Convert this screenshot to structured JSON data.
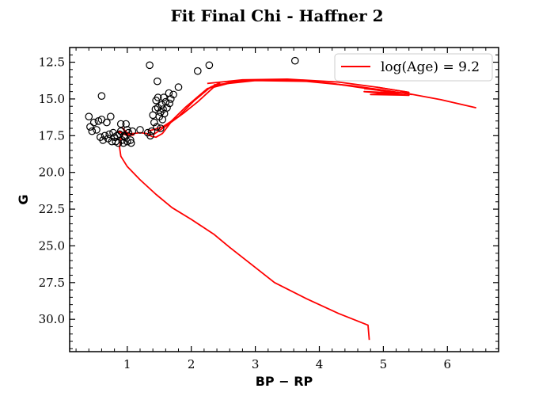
{
  "chart_data": {
    "type": "scatter",
    "title": "Fit Final Chi - Haffner 2",
    "xlabel": "BP − RP",
    "ylabel": "G",
    "xlim": [
      0.1,
      6.8
    ],
    "ylim": [
      32.2,
      11.5
    ],
    "y_inverted": true,
    "grid": false,
    "legend_position": "top-right",
    "x_ticks": [
      1,
      2,
      3,
      4,
      5,
      6
    ],
    "x_tick_labels": [
      "1",
      "2",
      "3",
      "4",
      "5",
      "6"
    ],
    "y_ticks": [
      12.5,
      15.0,
      17.5,
      20.0,
      22.5,
      25.0,
      27.5,
      30.0
    ],
    "y_tick_labels": [
      "12.5",
      "15.0",
      "17.5",
      "20.0",
      "22.5",
      "25.0",
      "27.5",
      "30.0"
    ],
    "series": [
      {
        "name": "stars",
        "kind": "scatter",
        "marker": "open-circle",
        "color": "#000000",
        "points": [
          [
            0.4,
            16.2
          ],
          [
            0.42,
            16.9
          ],
          [
            0.45,
            17.2
          ],
          [
            0.48,
            16.6
          ],
          [
            0.52,
            17.1
          ],
          [
            0.55,
            16.5
          ],
          [
            0.58,
            17.6
          ],
          [
            0.6,
            16.4
          ],
          [
            0.62,
            17.8
          ],
          [
            0.65,
            17.5
          ],
          [
            0.68,
            16.6
          ],
          [
            0.7,
            17.7
          ],
          [
            0.72,
            17.4
          ],
          [
            0.74,
            16.2
          ],
          [
            0.76,
            17.9
          ],
          [
            0.78,
            17.3
          ],
          [
            0.8,
            17.6
          ],
          [
            0.82,
            17.9
          ],
          [
            0.84,
            17.5
          ],
          [
            0.86,
            18.0
          ],
          [
            0.88,
            17.4
          ],
          [
            0.9,
            17.2
          ],
          [
            0.9,
            16.7
          ],
          [
            0.92,
            17.8
          ],
          [
            0.94,
            18.0
          ],
          [
            0.95,
            17.5
          ],
          [
            0.96,
            17.6
          ],
          [
            0.98,
            16.7
          ],
          [
            1.0,
            17.9
          ],
          [
            1.0,
            17.1
          ],
          [
            1.02,
            17.3
          ],
          [
            1.05,
            17.8
          ],
          [
            1.06,
            18.0
          ],
          [
            1.08,
            17.2
          ],
          [
            0.6,
            14.8
          ],
          [
            1.2,
            17.1
          ],
          [
            1.32,
            17.3
          ],
          [
            1.36,
            17.5
          ],
          [
            1.38,
            17.2
          ],
          [
            1.4,
            16.1
          ],
          [
            1.42,
            16.6
          ],
          [
            1.44,
            15.7
          ],
          [
            1.45,
            15.1
          ],
          [
            1.46,
            16.9
          ],
          [
            1.48,
            15.6
          ],
          [
            1.48,
            14.9
          ],
          [
            1.5,
            16.2
          ],
          [
            1.52,
            15.9
          ],
          [
            1.52,
            17.0
          ],
          [
            1.54,
            15.4
          ],
          [
            1.55,
            16.4
          ],
          [
            1.56,
            15.7
          ],
          [
            1.57,
            14.9
          ],
          [
            1.58,
            16.0
          ],
          [
            1.6,
            15.2
          ],
          [
            1.62,
            15.6
          ],
          [
            1.65,
            14.6
          ],
          [
            1.66,
            15.3
          ],
          [
            1.68,
            15.0
          ],
          [
            1.72,
            14.7
          ],
          [
            1.8,
            14.2
          ],
          [
            1.47,
            13.8
          ],
          [
            1.35,
            12.7
          ],
          [
            2.1,
            13.1
          ],
          [
            2.28,
            12.7
          ],
          [
            3.62,
            12.4
          ]
        ]
      },
      {
        "name": "log(Age) = 9.2",
        "kind": "line",
        "color": "#ff0000",
        "points": [
          [
            4.78,
            31.4
          ],
          [
            4.76,
            30.4
          ],
          [
            4.3,
            29.6
          ],
          [
            3.8,
            28.6
          ],
          [
            3.3,
            27.5
          ],
          [
            2.95,
            26.3
          ],
          [
            2.6,
            25.1
          ],
          [
            2.35,
            24.2
          ],
          [
            2.0,
            23.2
          ],
          [
            1.7,
            22.4
          ],
          [
            1.45,
            21.5
          ],
          [
            1.2,
            20.5
          ],
          [
            1.0,
            19.6
          ],
          [
            0.9,
            18.9
          ],
          [
            0.88,
            18.3
          ],
          [
            0.9,
            17.7
          ],
          [
            0.96,
            17.2
          ],
          [
            0.92,
            16.95
          ],
          [
            1.0,
            17.3
          ],
          [
            1.1,
            17.45
          ],
          [
            1.0,
            17.5
          ],
          [
            0.85,
            17.2
          ],
          [
            1.0,
            17.4
          ],
          [
            1.2,
            17.3
          ],
          [
            1.3,
            17.35
          ],
          [
            1.38,
            17.55
          ],
          [
            1.45,
            17.6
          ],
          [
            1.55,
            17.35
          ],
          [
            1.68,
            16.6
          ],
          [
            1.9,
            15.9
          ],
          [
            2.1,
            15.2
          ],
          [
            2.35,
            14.2
          ],
          [
            2.7,
            13.8
          ],
          [
            3.2,
            13.7
          ],
          [
            3.7,
            13.75
          ],
          [
            4.2,
            13.95
          ],
          [
            4.6,
            14.2
          ],
          [
            5.0,
            14.45
          ],
          [
            5.4,
            14.65
          ],
          [
            5.9,
            15.05
          ],
          [
            6.45,
            15.6
          ]
        ],
        "segments": [
          [
            [
              1.32,
              17.2
            ],
            [
              1.55,
              16.9
            ],
            [
              1.8,
              16.2
            ],
            [
              2.05,
              15.1
            ],
            [
              2.3,
              14.2
            ],
            [
              2.45,
              13.9
            ]
          ],
          [
            [
              1.4,
              17.45
            ],
            [
              1.62,
              16.8
            ],
            [
              1.9,
              15.6
            ],
            [
              2.25,
              14.3
            ],
            [
              2.65,
              13.8
            ]
          ],
          [
            [
              2.25,
              13.95
            ],
            [
              2.8,
              13.7
            ],
            [
              3.5,
              13.65
            ],
            [
              4.3,
              13.85
            ],
            [
              4.9,
              14.2
            ],
            [
              5.4,
              14.55
            ]
          ],
          [
            [
              2.35,
              14.05
            ],
            [
              3.0,
              13.75
            ],
            [
              3.8,
              13.8
            ],
            [
              4.5,
              14.1
            ],
            [
              5.0,
              14.4
            ],
            [
              5.45,
              14.7
            ]
          ],
          [
            [
              4.7,
              14.3
            ],
            [
              5.3,
              14.6
            ],
            [
              4.7,
              14.5
            ],
            [
              5.4,
              14.75
            ],
            [
              4.8,
              14.7
            ],
            [
              5.4,
              14.55
            ],
            [
              4.9,
              14.2
            ]
          ]
        ]
      }
    ]
  }
}
